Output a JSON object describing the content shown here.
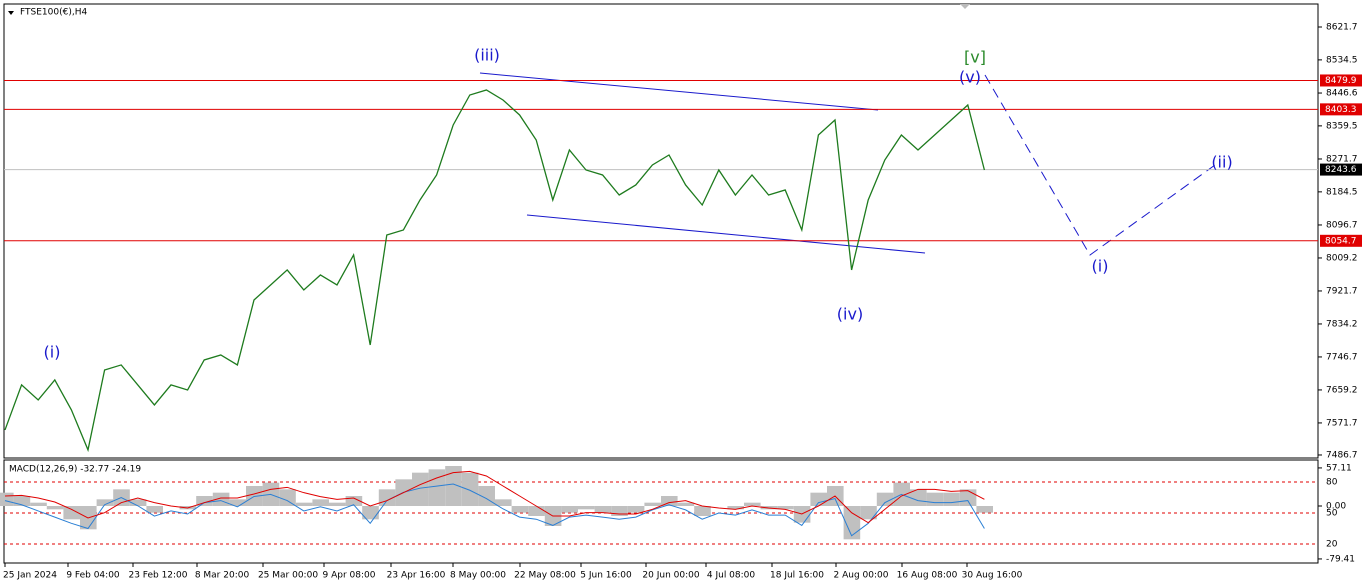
{
  "chart_data": {
    "type": "line",
    "title": "FTSE100(€),H4",
    "x_labels": [
      "25 Jan 2024",
      "9 Feb 04:00",
      "23 Feb 12:00",
      "8 Mar 20:00",
      "25 Mar 00:00",
      "9 Apr 08:00",
      "23 Apr 16:00",
      "8 May 00:00",
      "22 May 08:00",
      "5 Jun 16:00",
      "20 Jun 00:00",
      "4 Jul 08:00",
      "18 Jul 16:00",
      "2 Aug 00:00",
      "16 Aug 08:00",
      "30 Aug 16:00"
    ],
    "series": [
      {
        "color": "#1e7b1e",
        "values": [
          7553.1,
          7672.5,
          7632.7,
          7685.7,
          7606.2,
          7500.1,
          7712.2,
          7725.5,
          7672.5,
          7619.4,
          7672.5,
          7659.2,
          7738.7,
          7752.0,
          7725.5,
          7897.8,
          7937.6,
          7977.4,
          7924.4,
          7964.1,
          7937.6,
          8017.2,
          7778.5,
          8070.2,
          8083.4,
          8163.0,
          8229.3,
          8361.9,
          8441.4,
          8454.7,
          8428.1,
          8388.4,
          8322.1,
          8163.0,
          8295.6,
          8242.5,
          8229.3,
          8176.2,
          8202.8,
          8255.8,
          8282.3,
          8202.8,
          8149.7,
          8242.5,
          8176.2,
          8229.3,
          8176.2,
          8189.5,
          8083.4,
          8335.3,
          8375.1,
          7977.4,
          8163.0,
          8269.0,
          8335.3,
          8295.6,
          8335.3,
          8375.1,
          8414.9,
          8242.5
        ]
      }
    ],
    "ylim": [
      7478.7,
      8682.7
    ],
    "yticks": [
      8621.7,
      8534.5,
      8446.6,
      8359.5,
      8271.7,
      8184.5,
      8096.7,
      8009.2,
      7921.7,
      7834.2,
      7746.7,
      7659.2,
      7571.7,
      7486.7
    ],
    "levels": [
      8479.9,
      8403.3,
      8054.7
    ],
    "level_color": "#e00000",
    "last_price": 8243.6,
    "annotations": [
      {
        "text": "(i)",
        "color": "#1a1acc"
      },
      {
        "text": "(iii)",
        "color": "#1a1acc"
      },
      {
        "text": "(iv)",
        "color": "#1a1acc"
      },
      {
        "text": "[v]",
        "color": "#2a8a2a"
      },
      {
        "text": "(v)",
        "color": "#1a1acc"
      },
      {
        "text": "(i)",
        "color": "#1a1acc"
      },
      {
        "text": "(ii)",
        "color": "#1a1acc"
      }
    ],
    "indicator": {
      "title": "MACD(12,26,9) -32.77 -24.19",
      "histogram": [
        20,
        15,
        5,
        -5,
        -20,
        -35,
        10,
        25,
        10,
        -10,
        0,
        -5,
        15,
        20,
        10,
        30,
        35,
        25,
        5,
        10,
        5,
        15,
        -20,
        25,
        40,
        50,
        55,
        60,
        50,
        30,
        10,
        -10,
        -15,
        -30,
        -10,
        -5,
        -10,
        -15,
        -10,
        5,
        15,
        5,
        -15,
        0,
        -5,
        5,
        -5,
        -5,
        -25,
        20,
        30,
        -50,
        -20,
        20,
        35,
        25,
        20,
        20,
        25,
        -10
      ],
      "signal": [
        15,
        16,
        12,
        6,
        -5,
        -18,
        -10,
        5,
        12,
        5,
        0,
        -3,
        5,
        12,
        12,
        18,
        25,
        28,
        20,
        14,
        10,
        12,
        0,
        8,
        20,
        32,
        42,
        50,
        52,
        45,
        30,
        15,
        0,
        -15,
        -15,
        -10,
        -10,
        -12,
        -12,
        -5,
        5,
        8,
        0,
        -3,
        -5,
        0,
        -3,
        -5,
        -12,
        0,
        15,
        -10,
        -25,
        -5,
        15,
        25,
        25,
        22,
        23,
        10
      ],
      "hist_color": "#c0c0c0",
      "signal_color": "#e00000",
      "line": [
        62,
        58,
        52,
        46,
        40,
        35,
        58,
        65,
        57,
        47,
        52,
        49,
        60,
        62,
        56,
        66,
        68,
        62,
        52,
        56,
        52,
        58,
        40,
        62,
        70,
        74,
        76,
        78,
        72,
        64,
        54,
        46,
        44,
        38,
        46,
        48,
        46,
        44,
        46,
        53,
        58,
        53,
        44,
        50,
        48,
        53,
        48,
        48,
        38,
        60,
        64,
        28,
        40,
        60,
        68,
        62,
        60,
        60,
        62,
        35
      ],
      "line_color": "#2a7fd4",
      "ylim": [
        -84,
        67.5
      ],
      "yticks": [
        57.11,
        {
          "value": 0,
          "label": "0.00"
        },
        -79.41
      ],
      "y2lim": [
        2.6,
        100.3
      ],
      "y2ticks": [
        80,
        50,
        20
      ]
    }
  }
}
